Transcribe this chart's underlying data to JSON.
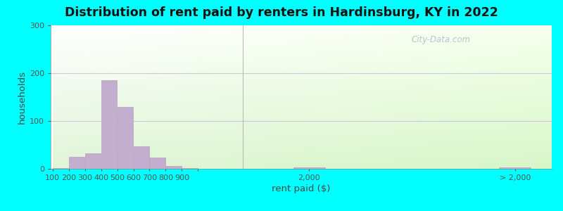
{
  "title": "Distribution of rent paid by renters in Hardinsburg, KY in 2022",
  "xlabel": "rent paid ($)",
  "ylabel": "households",
  "background_outer": "#00FFFF",
  "bar_color": "#c4aed0",
  "bar_edge_color": "#b89ec0",
  "categories": [
    "100",
    "200",
    "300",
    "400",
    "500",
    "600",
    "700",
    "800",
    "900"
  ],
  "values": [
    2,
    25,
    33,
    185,
    130,
    47,
    23,
    6,
    2
  ],
  "value_2000": 3,
  "value_gt2000": 3,
  "ylim": [
    0,
    300
  ],
  "yticks": [
    0,
    100,
    200,
    300
  ],
  "title_fontsize": 12.5,
  "axis_label_fontsize": 9.5,
  "tick_fontsize": 8,
  "watermark": "City-Data.com"
}
